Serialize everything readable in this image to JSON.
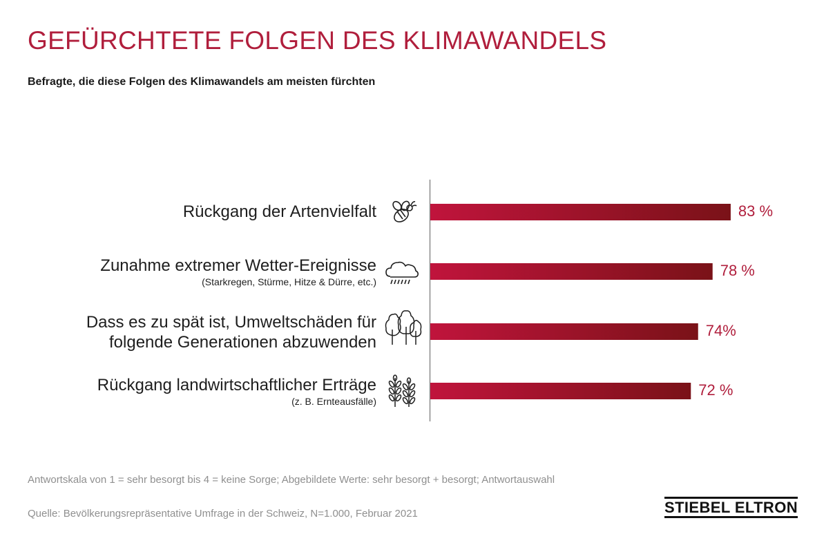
{
  "title": "GEFÜRCHTETE FOLGEN DES KLIMAWANDELS",
  "subtitle": "Befragte, die diese Folgen des Klimawandels am meisten fürchten",
  "chart_data": {
    "type": "bar",
    "orientation": "horizontal",
    "categories": [
      "Rückgang der Artenvielfalt",
      "Zunahme extremer Wetter-Ereignisse",
      "Dass es zu spät ist, Umweltschäden für folgende Generationen abzuwenden",
      "Rückgang landwirtschaftlicher Erträge"
    ],
    "category_lines": [
      [
        "Rückgang der Artenvielfalt"
      ],
      [
        "Zunahme extremer Wetter-Ereignisse"
      ],
      [
        "Dass es zu spät ist, Umweltschäden für",
        "folgende Generationen abzuwenden"
      ],
      [
        "Rückgang landwirtschaftlicher Erträge"
      ]
    ],
    "category_notes": [
      "",
      "(Starkregen, Stürme, Hitze & Dürre, etc.)",
      "",
      "(z. B. Ernteausfälle)"
    ],
    "values": [
      83,
      78,
      74,
      72
    ],
    "value_labels": [
      "83 %",
      "78 %",
      "74%",
      "72 %"
    ],
    "icons": [
      "bee-icon",
      "rain-cloud-icon",
      "trees-icon",
      "wheat-icon"
    ],
    "unit": "%",
    "xlim": [
      0,
      100
    ],
    "bar_color_start": "#c0143c",
    "bar_color_end": "#7a1218",
    "label_color": "#b01e3c"
  },
  "footnotes": {
    "scale": "Antwortskala von 1 = sehr besorgt bis 4 = keine Sorge; Abgebildete Werte: sehr besorgt + besorgt; Antwortauswahl",
    "source": "Quelle: Bevölkerungsrepräsentative Umfrage in der Schweiz, N=1.000, Februar 2021"
  },
  "logo": "STIEBEL ELTRON"
}
